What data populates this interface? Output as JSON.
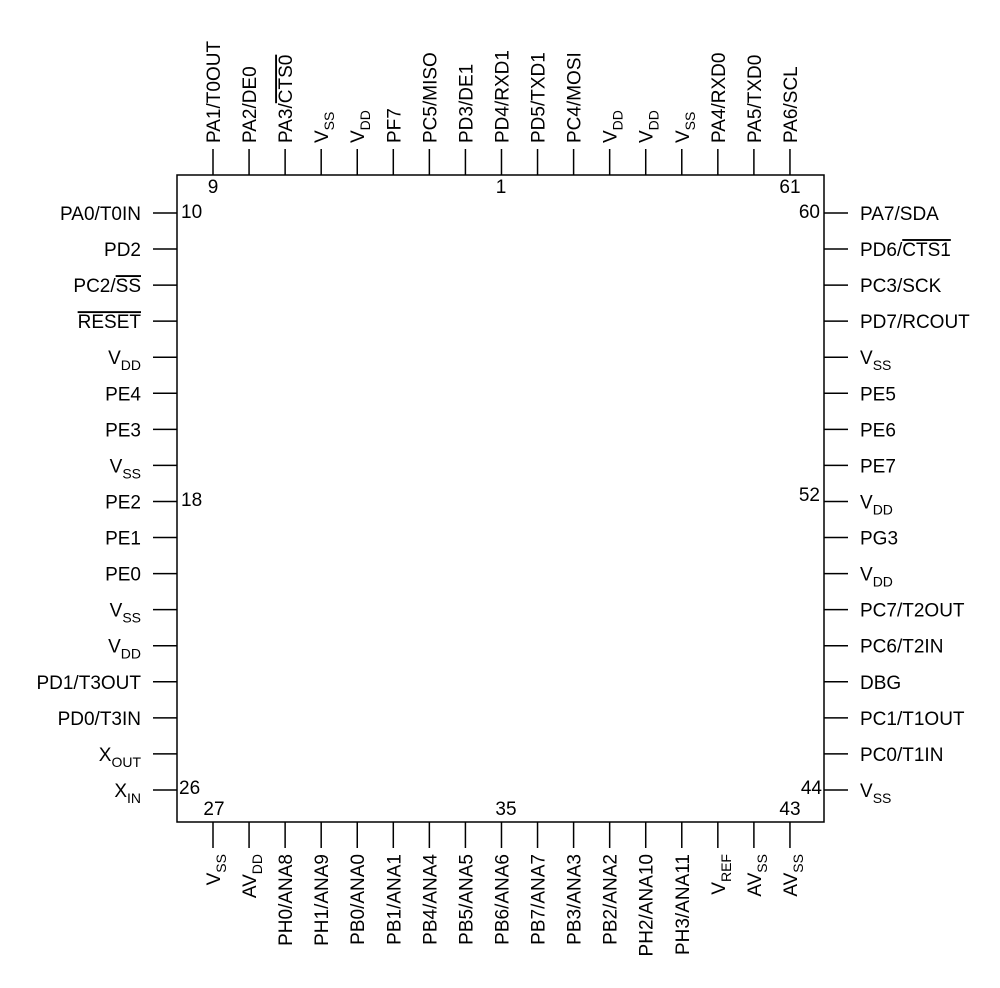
{
  "package": {
    "pins_top": [
      {
        "label": "PA1/T0OUT"
      },
      {
        "label": "PA2/DE0"
      },
      {
        "label": "PA3/CTS0",
        "overline": "CTS0"
      },
      {
        "label": "V",
        "sub": "SS"
      },
      {
        "label": "V",
        "sub": "DD"
      },
      {
        "label": "PF7"
      },
      {
        "label": "PC5/MISO"
      },
      {
        "label": "PD3/DE1"
      },
      {
        "label": "PD4/RXD1"
      },
      {
        "label": "PD5/TXD1"
      },
      {
        "label": "PC4/MOSI"
      },
      {
        "label": "V",
        "sub": "DD"
      },
      {
        "label": "V",
        "sub": "DD"
      },
      {
        "label": "V",
        "sub": "SS"
      },
      {
        "label": "PA4/RXD0"
      },
      {
        "label": "PA5/TXD0"
      },
      {
        "label": "PA6/SCL"
      }
    ],
    "pins_left": [
      {
        "label": "PA0/T0IN"
      },
      {
        "label": "PD2"
      },
      {
        "label": "PC2/SS",
        "overline": "SS"
      },
      {
        "label": "RESET",
        "overline": "RESET"
      },
      {
        "label": "V",
        "sub": "DD"
      },
      {
        "label": "PE4"
      },
      {
        "label": "PE3"
      },
      {
        "label": "V",
        "sub": "SS"
      },
      {
        "label": "PE2"
      },
      {
        "label": "PE1"
      },
      {
        "label": "PE0"
      },
      {
        "label": "V",
        "sub": "SS"
      },
      {
        "label": "V",
        "sub": "DD"
      },
      {
        "label": "PD1/T3OUT"
      },
      {
        "label": "PD0/T3IN"
      },
      {
        "label": "X",
        "sub": "OUT"
      },
      {
        "label": "X",
        "sub": "IN"
      }
    ],
    "pins_right": [
      {
        "label": "PA7/SDA"
      },
      {
        "label": "PD6/CTS1",
        "overline": "CTS1"
      },
      {
        "label": "PC3/SCK"
      },
      {
        "label": "PD7/RCOUT"
      },
      {
        "label": "V",
        "sub": "SS"
      },
      {
        "label": "PE5"
      },
      {
        "label": "PE6"
      },
      {
        "label": "PE7"
      },
      {
        "label": "V",
        "sub": "DD"
      },
      {
        "label": "PG3"
      },
      {
        "label": "V",
        "sub": "DD"
      },
      {
        "label": "PC7/T2OUT"
      },
      {
        "label": "PC6/T2IN"
      },
      {
        "label": "DBG"
      },
      {
        "label": "PC1/T1OUT"
      },
      {
        "label": "PC0/T1IN"
      },
      {
        "label": "V",
        "sub": "SS"
      }
    ],
    "pins_bottom": [
      {
        "label": "V",
        "sub": "SS"
      },
      {
        "label": "AV",
        "sub": "DD"
      },
      {
        "label": "PH0/ANA8"
      },
      {
        "label": "PH1/ANA9"
      },
      {
        "label": "PB0/ANA0"
      },
      {
        "label": "PB1/ANA1"
      },
      {
        "label": "PB4/ANA4"
      },
      {
        "label": "PB5/ANA5"
      },
      {
        "label": "PB6/ANA6"
      },
      {
        "label": "PB7/ANA7"
      },
      {
        "label": "PB3/ANA3"
      },
      {
        "label": "PB2/ANA2"
      },
      {
        "label": "PH2/ANA10"
      },
      {
        "label": "PH3/ANA11"
      },
      {
        "label": "V",
        "sub": "REF"
      },
      {
        "label": "AV",
        "sub": "SS"
      },
      {
        "label": "AV",
        "sub": "SS"
      }
    ],
    "pin_numbers": {
      "top_left": "9",
      "top_mid": "1",
      "top_right": "61",
      "left_top": "10",
      "left_mid": "18",
      "left_bottom": "26",
      "right_top": "60",
      "right_mid": "52",
      "right_bottom": "44",
      "bottom_left": "27",
      "bottom_mid": "35",
      "bottom_right": "43"
    }
  }
}
